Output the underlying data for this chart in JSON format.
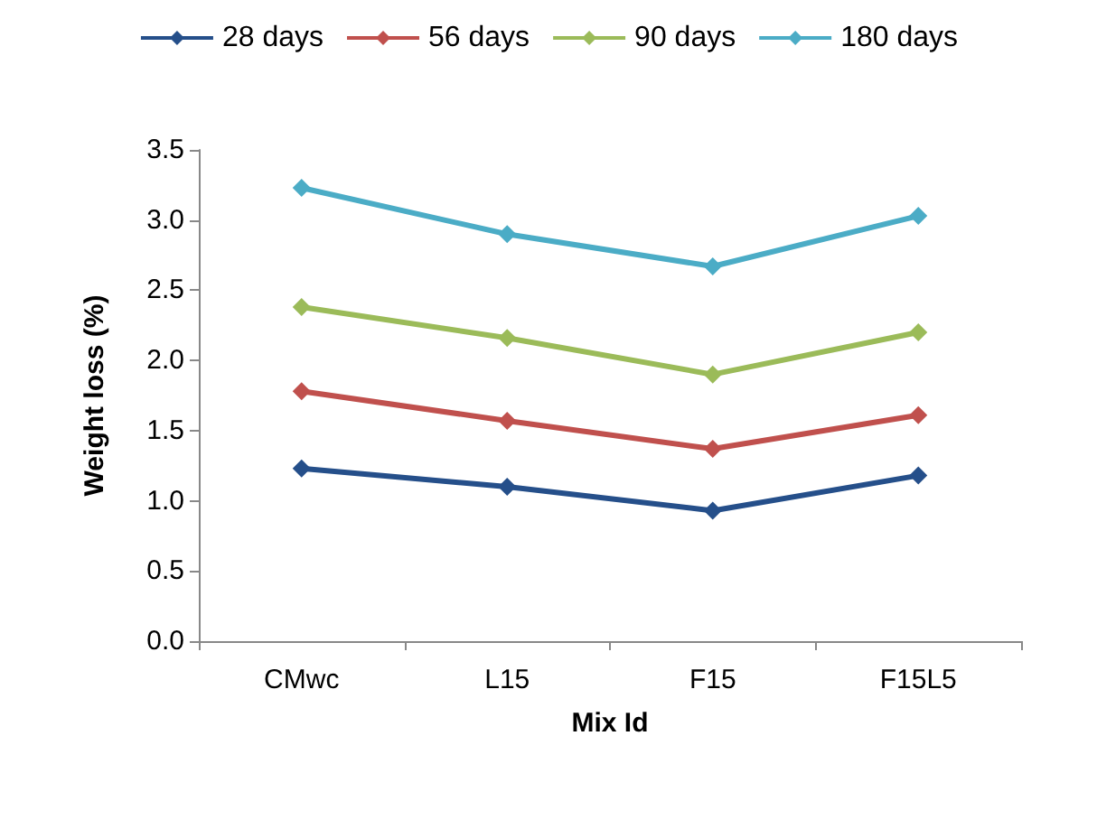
{
  "chart_data": {
    "type": "line",
    "xlabel": "Mix Id",
    "ylabel": "Weight loss (%)",
    "categories": [
      "CMwc",
      "L15",
      "F15",
      "F15L5"
    ],
    "series": [
      {
        "name": "28 days",
        "color": "#254f8a",
        "values": [
          1.23,
          1.1,
          0.93,
          1.18
        ]
      },
      {
        "name": "56 days",
        "color": "#c0504d",
        "values": [
          1.78,
          1.57,
          1.37,
          1.61
        ]
      },
      {
        "name": "90 days",
        "color": "#9bbb59",
        "values": [
          2.38,
          2.16,
          1.9,
          2.2
        ]
      },
      {
        "name": "180 days",
        "color": "#4bacc6",
        "values": [
          3.23,
          2.9,
          2.67,
          3.03
        ]
      }
    ],
    "ylim": [
      0,
      3.5
    ],
    "yticks": [
      {
        "value": 0,
        "label": "0.0"
      },
      {
        "value": 0.5,
        "label": "0.5"
      },
      {
        "value": 1,
        "label": "1.0"
      },
      {
        "value": 1.5,
        "label": "1.5"
      },
      {
        "value": 2,
        "label": "2.0"
      },
      {
        "value": 2.5,
        "label": "2.5"
      },
      {
        "value": 3,
        "label": "3.0"
      },
      {
        "value": 3.5,
        "label": "3.5"
      }
    ],
    "grid": false,
    "legend": "top",
    "marker": "diamond",
    "line_style": "solid"
  }
}
